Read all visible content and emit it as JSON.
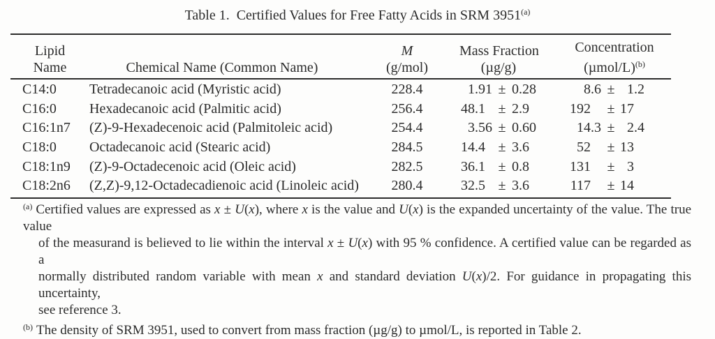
{
  "title": {
    "text": "Table 1.  Certified Values for Free Fatty Acids in SRM 3951",
    "sup": "(a)"
  },
  "table": {
    "pm": "±",
    "header": {
      "lipid_line1": "Lipid",
      "lipid_line2": "Name",
      "chemical": "Chemical Name (Common Name)",
      "m_symbol": "M",
      "m_unit": "(g/mol)",
      "mass_fraction": "Mass Fraction",
      "mass_fraction_unit": "(µg/g)",
      "concentration": "Concentration",
      "concentration_unit": "(µmol/L)",
      "concentration_sup": "(b)"
    },
    "rows": [
      {
        "lipid": "C14:0",
        "chemical": "Tetradecanoic acid (Myristic acid)",
        "m": "228.4",
        "mf": "1.91",
        "mf_u": "0.28",
        "c": "8.6",
        "c_u": "1.2"
      },
      {
        "lipid": "C16:0",
        "chemical": "Hexadecanoic acid (Palmitic acid)",
        "m": "256.4",
        "mf": "48.1",
        "mf_u": "2.9",
        "c": "192",
        "c_u": "17"
      },
      {
        "lipid": "C16:1n7",
        "chemical": "(Z)-9-Hexadecenoic acid (Palmitoleic acid)",
        "m": "254.4",
        "mf": "3.56",
        "mf_u": "0.60",
        "c": "14.3",
        "c_u": "2.4"
      },
      {
        "lipid": "C18:0",
        "chemical": "Octadecanoic acid (Stearic acid)",
        "m": "284.5",
        "mf": "14.4",
        "mf_u": "3.6",
        "c": "52",
        "c_u": "13"
      },
      {
        "lipid": "C18:1n9",
        "chemical": "(Z)-9-Octadecenoic acid (Oleic acid)",
        "m": "282.5",
        "mf": "36.1",
        "mf_u": "0.8",
        "c": "131",
        "c_u": "3"
      },
      {
        "lipid": "C18:2n6",
        "chemical": "(Z,Z)-9,12-Octadecadienoic acid (Linoleic acid)",
        "m": "280.4",
        "mf": "32.5",
        "mf_u": "3.6",
        "c": "117",
        "c_u": "14"
      }
    ]
  },
  "footnotes": {
    "a": {
      "marker": "(a)",
      "lines": [
        [
          {
            "t": "Certified values are expressed as "
          },
          {
            "t": "x",
            "i": 1
          },
          {
            "t": " ± "
          },
          {
            "t": "U",
            "i": 1
          },
          {
            "t": "("
          },
          {
            "t": "x",
            "i": 1
          },
          {
            "t": "), where "
          },
          {
            "t": "x",
            "i": 1
          },
          {
            "t": " is the value and "
          },
          {
            "t": "U",
            "i": 1
          },
          {
            "t": "("
          },
          {
            "t": "x",
            "i": 1
          },
          {
            "t": ") is the expanded uncertainty of the value.  The true value"
          }
        ],
        [
          {
            "t": "of the measurand is believed to lie within the interval "
          },
          {
            "t": "x",
            "i": 1
          },
          {
            "t": " ± "
          },
          {
            "t": "U",
            "i": 1
          },
          {
            "t": "("
          },
          {
            "t": "x",
            "i": 1
          },
          {
            "t": ") with 95 % confidence.  A certified value can be regarded as a"
          }
        ],
        [
          {
            "t": "normally distributed random variable with mean "
          },
          {
            "t": "x",
            "i": 1
          },
          {
            "t": " and standard deviation "
          },
          {
            "t": "U",
            "i": 1
          },
          {
            "t": "("
          },
          {
            "t": "x",
            "i": 1
          },
          {
            "t": ")/2.  For guidance in propagating this uncertainty,"
          }
        ],
        [
          {
            "t": "see reference 3."
          }
        ]
      ]
    },
    "b": {
      "marker": "(b)",
      "lines": [
        [
          {
            "t": "The density of SRM 3951, used to convert from mass fraction (µg/g) to µmol/L, is reported in Table 2."
          }
        ]
      ]
    }
  }
}
